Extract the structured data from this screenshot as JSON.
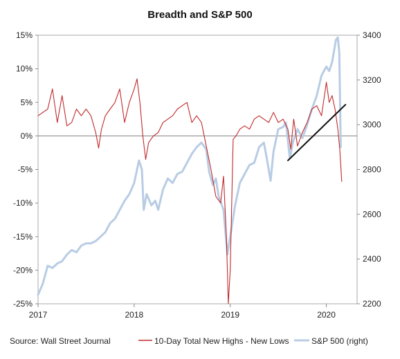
{
  "chart_data": {
    "type": "line",
    "title": "Breadth and S&P 500",
    "source": "Source: Wall Street Journal",
    "x_ticks": [
      "2017",
      "2018",
      "2019",
      "2020"
    ],
    "y_left": {
      "ticks": [
        "15%",
        "10%",
        "5%",
        "0%",
        "-5%",
        "-10%",
        "-15%",
        "-20%",
        "-25%"
      ],
      "range": [
        -25,
        15
      ]
    },
    "y_right": {
      "ticks": [
        "3400",
        "3200",
        "3000",
        "2800",
        "2600",
        "2400",
        "2200"
      ],
      "range": [
        2200,
        3400
      ]
    },
    "grid": false,
    "zero_line": true,
    "legend_position": "bottom",
    "series": [
      {
        "name": "10-Day Total New Highs - New Lows",
        "axis": "left",
        "color": "#c0292b",
        "points": [
          [
            2017.0,
            3
          ],
          [
            2017.05,
            3.5
          ],
          [
            2017.1,
            4
          ],
          [
            2017.15,
            7
          ],
          [
            2017.2,
            2
          ],
          [
            2017.25,
            6
          ],
          [
            2017.3,
            1.5
          ],
          [
            2017.35,
            2
          ],
          [
            2017.4,
            4
          ],
          [
            2017.45,
            3
          ],
          [
            2017.5,
            4
          ],
          [
            2017.55,
            3
          ],
          [
            2017.6,
            0.5
          ],
          [
            2017.63,
            -1.8
          ],
          [
            2017.66,
            1
          ],
          [
            2017.7,
            3
          ],
          [
            2017.75,
            4
          ],
          [
            2017.8,
            5
          ],
          [
            2017.85,
            7
          ],
          [
            2017.9,
            2
          ],
          [
            2017.95,
            5
          ],
          [
            2018.0,
            7
          ],
          [
            2018.03,
            8.5
          ],
          [
            2018.06,
            5
          ],
          [
            2018.09,
            0
          ],
          [
            2018.12,
            -3.5
          ],
          [
            2018.15,
            -1
          ],
          [
            2018.2,
            0
          ],
          [
            2018.25,
            0.5
          ],
          [
            2018.3,
            2
          ],
          [
            2018.35,
            2.5
          ],
          [
            2018.4,
            3
          ],
          [
            2018.45,
            4
          ],
          [
            2018.5,
            4.5
          ],
          [
            2018.55,
            5
          ],
          [
            2018.6,
            2
          ],
          [
            2018.65,
            3
          ],
          [
            2018.7,
            2
          ],
          [
            2018.75,
            -1.5
          ],
          [
            2018.8,
            -5
          ],
          [
            2018.85,
            -9
          ],
          [
            2018.9,
            -10
          ],
          [
            2018.93,
            -6
          ],
          [
            2018.96,
            -15
          ],
          [
            2018.98,
            -25
          ],
          [
            2019.0,
            -20
          ],
          [
            2019.03,
            -0.5
          ],
          [
            2019.06,
            0
          ],
          [
            2019.1,
            1
          ],
          [
            2019.15,
            1.5
          ],
          [
            2019.2,
            1
          ],
          [
            2019.25,
            2.5
          ],
          [
            2019.3,
            3
          ],
          [
            2019.35,
            2.5
          ],
          [
            2019.4,
            2
          ],
          [
            2019.45,
            3.5
          ],
          [
            2019.5,
            2
          ],
          [
            2019.55,
            2.5
          ],
          [
            2019.6,
            1
          ],
          [
            2019.63,
            -2
          ],
          [
            2019.66,
            2.5
          ],
          [
            2019.7,
            -1.5
          ],
          [
            2019.75,
            0.5
          ],
          [
            2019.8,
            2
          ],
          [
            2019.85,
            4
          ],
          [
            2019.9,
            4.5
          ],
          [
            2019.95,
            3
          ],
          [
            2020.0,
            8
          ],
          [
            2020.03,
            5
          ],
          [
            2020.06,
            6
          ],
          [
            2020.09,
            4
          ],
          [
            2020.12,
            1
          ],
          [
            2020.14,
            -2
          ],
          [
            2020.16,
            -6.8
          ]
        ]
      },
      {
        "name": "S&P 500 (right)",
        "axis": "right",
        "color": "#b8cce4",
        "points": [
          [
            2017.0,
            2240
          ],
          [
            2017.05,
            2290
          ],
          [
            2017.1,
            2370
          ],
          [
            2017.15,
            2360
          ],
          [
            2017.2,
            2380
          ],
          [
            2017.25,
            2390
          ],
          [
            2017.3,
            2420
          ],
          [
            2017.35,
            2440
          ],
          [
            2017.4,
            2430
          ],
          [
            2017.45,
            2460
          ],
          [
            2017.5,
            2470
          ],
          [
            2017.55,
            2470
          ],
          [
            2017.6,
            2480
          ],
          [
            2017.65,
            2500
          ],
          [
            2017.7,
            2520
          ],
          [
            2017.75,
            2560
          ],
          [
            2017.8,
            2580
          ],
          [
            2017.85,
            2620
          ],
          [
            2017.9,
            2660
          ],
          [
            2017.95,
            2690
          ],
          [
            2018.0,
            2740
          ],
          [
            2018.05,
            2840
          ],
          [
            2018.08,
            2800
          ],
          [
            2018.1,
            2620
          ],
          [
            2018.13,
            2690
          ],
          [
            2018.18,
            2640
          ],
          [
            2018.22,
            2660
          ],
          [
            2018.25,
            2620
          ],
          [
            2018.3,
            2710
          ],
          [
            2018.35,
            2760
          ],
          [
            2018.4,
            2740
          ],
          [
            2018.45,
            2780
          ],
          [
            2018.5,
            2790
          ],
          [
            2018.55,
            2830
          ],
          [
            2018.6,
            2870
          ],
          [
            2018.65,
            2900
          ],
          [
            2018.7,
            2920
          ],
          [
            2018.75,
            2890
          ],
          [
            2018.78,
            2790
          ],
          [
            2018.82,
            2730
          ],
          [
            2018.85,
            2760
          ],
          [
            2018.88,
            2680
          ],
          [
            2018.93,
            2620
          ],
          [
            2018.97,
            2420
          ],
          [
            2019.0,
            2500
          ],
          [
            2019.05,
            2640
          ],
          [
            2019.1,
            2740
          ],
          [
            2019.15,
            2780
          ],
          [
            2019.2,
            2820
          ],
          [
            2019.25,
            2830
          ],
          [
            2019.3,
            2900
          ],
          [
            2019.35,
            2920
          ],
          [
            2019.38,
            2850
          ],
          [
            2019.42,
            2750
          ],
          [
            2019.45,
            2880
          ],
          [
            2019.5,
            2980
          ],
          [
            2019.55,
            2990
          ],
          [
            2019.58,
            3010
          ],
          [
            2019.62,
            2850
          ],
          [
            2019.65,
            2920
          ],
          [
            2019.7,
            2980
          ],
          [
            2019.75,
            2940
          ],
          [
            2019.8,
            3000
          ],
          [
            2019.85,
            3070
          ],
          [
            2019.9,
            3130
          ],
          [
            2019.95,
            3220
          ],
          [
            2020.0,
            3260
          ],
          [
            2020.03,
            3240
          ],
          [
            2020.06,
            3280
          ],
          [
            2020.1,
            3380
          ],
          [
            2020.12,
            3390
          ],
          [
            2020.135,
            3320
          ],
          [
            2020.15,
            2900
          ]
        ]
      },
      {
        "name": "trendline",
        "axis": "right",
        "color": "#111111",
        "points": [
          [
            2019.6,
            2840
          ],
          [
            2020.2,
            3090
          ]
        ]
      }
    ]
  }
}
